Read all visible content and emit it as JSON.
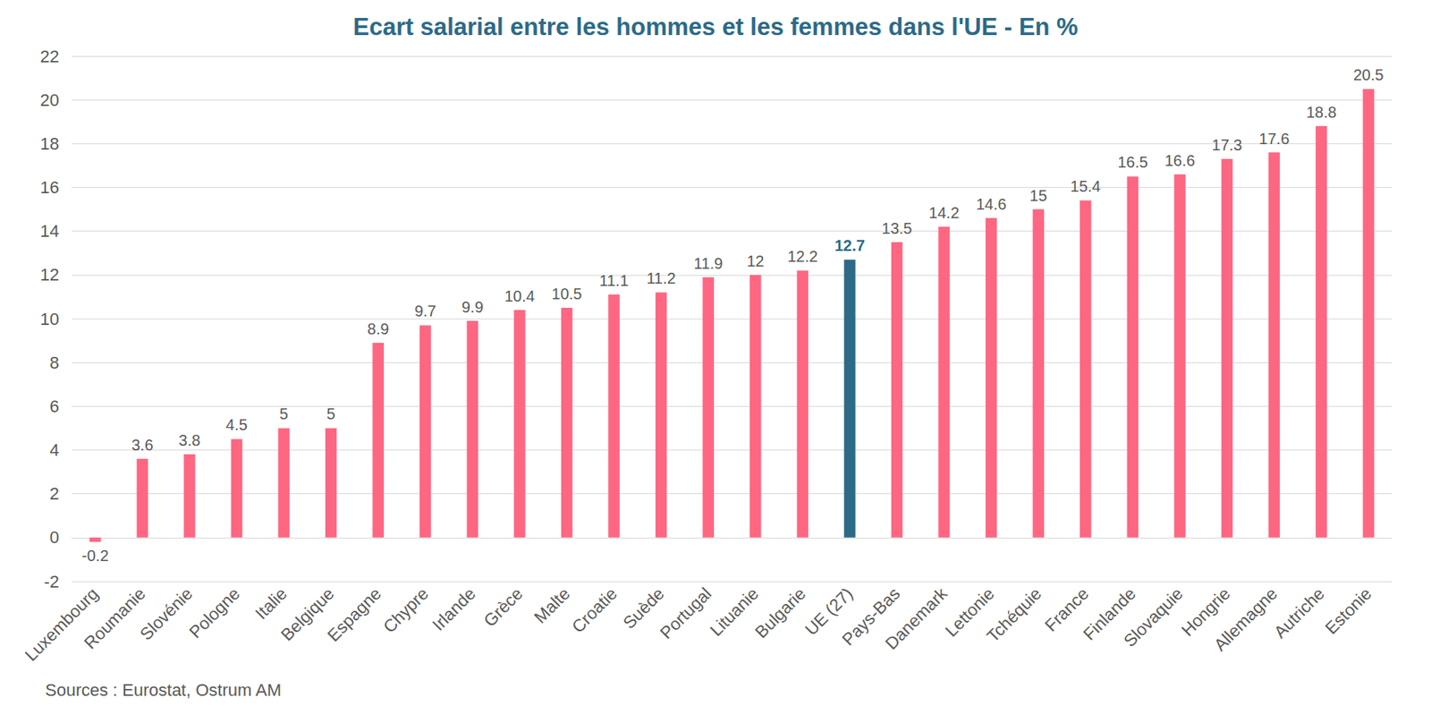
{
  "chart_data": {
    "type": "bar",
    "title": "Ecart salarial entre les hommes et les femmes dans l'UE - En %",
    "annotations": [
      "Sources : Eurostat, Ostrum AM"
    ],
    "categories": [
      "Luxembourg",
      "Roumanie",
      "Slovénie",
      "Pologne",
      "Italie",
      "Belgique",
      "Espagne",
      "Chypre",
      "Irlande",
      "Grèce",
      "Malte",
      "Croatie",
      "Suède",
      "Portugal",
      "Lituanie",
      "Bulgarie",
      "UE (27)",
      "Pays-Bas",
      "Danemark",
      "Lettonie",
      "Tchéquie",
      "France",
      "Finlande",
      "Slovaquie",
      "Hongrie",
      "Allemagne",
      "Autriche",
      "Estonie"
    ],
    "values": [
      -0.2,
      3.6,
      3.8,
      4.5,
      5,
      5,
      8.9,
      9.7,
      9.9,
      10.4,
      10.5,
      11.1,
      11.2,
      11.9,
      12,
      12.2,
      12.7,
      13.5,
      14.2,
      14.6,
      15,
      15.4,
      16.5,
      16.6,
      17.3,
      17.6,
      18.8,
      20.5
    ],
    "colors": [
      "#ff6681",
      "#ff6681",
      "#ff6681",
      "#ff6681",
      "#ff6681",
      "#ff6681",
      "#ff6681",
      "#ff6681",
      "#ff6681",
      "#ff6681",
      "#ff6681",
      "#ff6681",
      "#ff6681",
      "#ff6681",
      "#ff6681",
      "#ff6681",
      "#2c6a87",
      "#ff6681",
      "#ff6681",
      "#ff6681",
      "#ff6681",
      "#ff6681",
      "#ff6681",
      "#ff6681",
      "#ff6681",
      "#ff6681",
      "#ff6681",
      "#ff6681"
    ],
    "ylim": [
      -2,
      22
    ],
    "yticks": [
      -2,
      0,
      2,
      4,
      6,
      8,
      10,
      12,
      14,
      16,
      18,
      20,
      22
    ],
    "grid": true,
    "data_labels": true
  }
}
